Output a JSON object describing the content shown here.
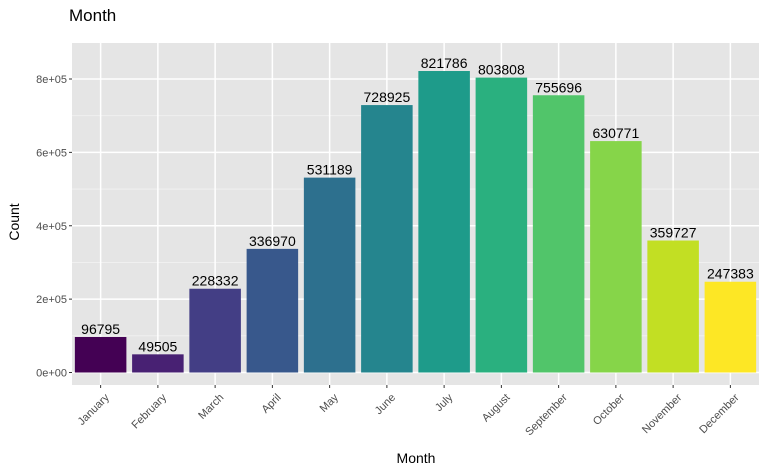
{
  "chart_data": {
    "type": "bar",
    "title": "Month",
    "xlabel": "Month",
    "ylabel": "Count",
    "ylim": [
      0,
      870000
    ],
    "yticks": [
      0,
      200000,
      400000,
      600000,
      800000
    ],
    "ytick_labels": [
      "0e+00",
      "2e+05",
      "4e+05",
      "6e+05",
      "8e+05"
    ],
    "categories": [
      "January",
      "February",
      "March",
      "April",
      "May",
      "June",
      "July",
      "August",
      "September",
      "October",
      "November",
      "December"
    ],
    "values": [
      96795,
      49505,
      228332,
      336970,
      531189,
      728925,
      821786,
      803808,
      755696,
      630771,
      359727,
      247383
    ],
    "value_labels": [
      "96795",
      "49505",
      "228332",
      "336970",
      "531189",
      "728925",
      "821786",
      "803808",
      "755696",
      "630771",
      "359727",
      "247383"
    ],
    "colors": [
      "#440154",
      "#482173",
      "#433e85",
      "#38588c",
      "#2d708e",
      "#25858e",
      "#1e9b8a",
      "#2ab07f",
      "#51c56a",
      "#86d549",
      "#c2df23",
      "#fde725"
    ],
    "panel_background": "#e5e5e5",
    "grid": true,
    "legend": "none"
  }
}
